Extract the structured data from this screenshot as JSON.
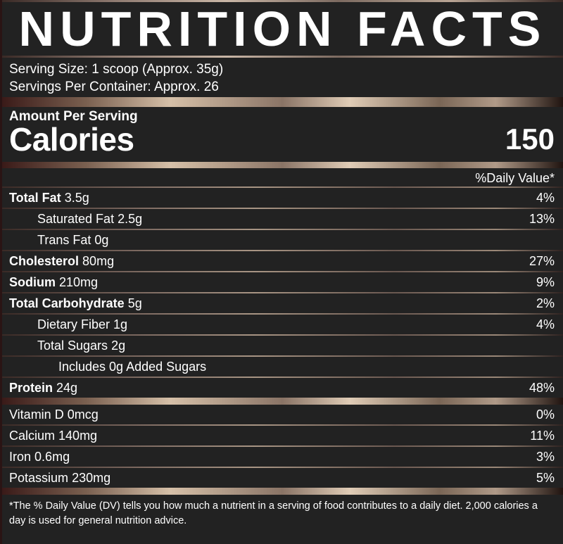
{
  "title": "NUTRITION FACTS",
  "serving": {
    "size": "Serving Size: 1 scoop (Approx. 35g)",
    "per_container": "Servings Per Container: Approx. 26"
  },
  "calories": {
    "amount_label": "Amount Per Serving",
    "label": "Calories",
    "value": "150"
  },
  "dv_header": "%Daily Value*",
  "nutrients": [
    {
      "name": "Total Fat",
      "amount": "3.5g",
      "dv": "4%",
      "bold": true,
      "indent": 0
    },
    {
      "name": "Saturated Fat",
      "amount": "2.5g",
      "dv": "13%",
      "bold": false,
      "indent": 1
    },
    {
      "name": "Trans Fat",
      "amount": "0g",
      "dv": "",
      "bold": false,
      "indent": 1
    },
    {
      "name": "Cholesterol",
      "amount": "80mg",
      "dv": "27%",
      "bold": true,
      "indent": 0
    },
    {
      "name": "Sodium",
      "amount": "210mg",
      "dv": "9%",
      "bold": true,
      "indent": 0
    },
    {
      "name": "Total Carbohydrate",
      "amount": "5g",
      "dv": "2%",
      "bold": true,
      "indent": 0
    },
    {
      "name": "Dietary Fiber",
      "amount": "1g",
      "dv": "4%",
      "bold": false,
      "indent": 1
    },
    {
      "name": "Total Sugars",
      "amount": "2g",
      "dv": "",
      "bold": false,
      "indent": 1
    },
    {
      "name": "Includes 0g Added Sugars",
      "amount": "",
      "dv": "",
      "bold": false,
      "indent": 2
    },
    {
      "name": "Protein",
      "amount": "24g",
      "dv": "48%",
      "bold": true,
      "indent": 0
    }
  ],
  "vitamins": [
    {
      "name": "Vitamin D",
      "amount": "0mcg",
      "dv": "0%"
    },
    {
      "name": "Calcium",
      "amount": "140mg",
      "dv": "11%"
    },
    {
      "name": "Iron",
      "amount": "0.6mg",
      "dv": "3%"
    },
    {
      "name": "Potassium",
      "amount": "230mg",
      "dv": "5%"
    }
  ],
  "footnote": "*The % Daily Value (DV) tells you how much a nutrient in a serving of food contributes to a daily diet. 2,000 calories a day is used for general nutrition advice.",
  "colors": {
    "background": "#222222",
    "text": "#ffffff",
    "metallic_light": "#d6c0a8",
    "metallic_dark": "#3a1a18"
  }
}
